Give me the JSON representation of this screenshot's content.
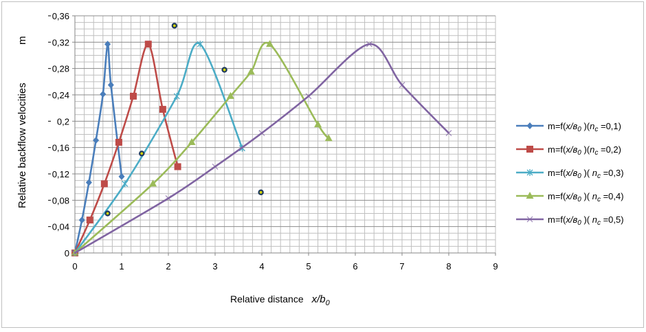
{
  "chart_data": {
    "type": "line",
    "title": "",
    "xlabel_prefix": "Relative distance",
    "xlabel_math": "x/b",
    "xlabel_sub": "0",
    "ylabel": "Relative backflow velocities",
    "ylabel_symbol": "m",
    "xlim": [
      0,
      9
    ],
    "ylim": [
      0,
      0.36
    ],
    "grid": true,
    "legend_position": "right",
    "x_ticks": [
      "0",
      "1",
      "2",
      "3",
      "4",
      "5",
      "6",
      "7",
      "8",
      "9"
    ],
    "y_ticks": [
      "0",
      "0,04",
      "0,08",
      "0,12",
      "0,16",
      "0,2",
      "0,24",
      "0,28",
      "0,32",
      "0,36"
    ],
    "series": [
      {
        "name": "m=f(x/в0 )(nc =0,1)",
        "legend": {
          "pre": "m=f(",
          "x": "x/в",
          "x_sub": "0",
          "mid": " )(",
          "n": "n",
          "n_sub": "c",
          "post": " =0,1)"
        },
        "color": "#4a7ebb",
        "marker": "diamond",
        "points": [
          [
            0,
            0
          ],
          [
            0.15,
            0.05
          ],
          [
            0.3,
            0.107
          ],
          [
            0.45,
            0.171
          ],
          [
            0.6,
            0.241
          ],
          [
            0.7,
            0.317
          ],
          [
            0.77,
            0.255
          ],
          [
            1.0,
            0.116
          ]
        ]
      },
      {
        "name": "m=f(x/в0 )(nc =0,2)",
        "legend": {
          "pre": "m=f(",
          "x": "x/в",
          "x_sub": "0",
          "mid": " )(",
          "n": "n",
          "n_sub": "c",
          "post": " =0,2)"
        },
        "color": "#be4b48",
        "marker": "square",
        "points": [
          [
            0,
            0
          ],
          [
            0.32,
            0.05
          ],
          [
            0.63,
            0.105
          ],
          [
            0.94,
            0.168
          ],
          [
            1.25,
            0.238
          ],
          [
            1.57,
            0.317
          ],
          [
            1.88,
            0.218
          ],
          [
            2.2,
            0.131
          ]
        ]
      },
      {
        "name": "m=f(x/в0 )( nc =0,3)",
        "legend": {
          "pre": "m=f(",
          "x": "x/в",
          "x_sub": "0",
          "mid": " )( ",
          "n": "n",
          "n_sub": "c",
          "post": " =0,3)"
        },
        "color": "#4bacc6",
        "marker": "star",
        "points": [
          [
            0,
            0
          ],
          [
            1.07,
            0.105
          ],
          [
            2.18,
            0.238
          ],
          [
            2.68,
            0.317
          ],
          [
            3.58,
            0.159
          ]
        ]
      },
      {
        "name": "m=f(x/в0 )( nc =0,4)",
        "legend": {
          "pre": "m=f(",
          "x": "x/в",
          "x_sub": "0",
          "mid": " )( ",
          "n": "n",
          "n_sub": "c",
          "post": " =0,4)"
        },
        "color": "#9bbb59",
        "marker": "triangle",
        "points": [
          [
            0,
            0
          ],
          [
            1.67,
            0.105
          ],
          [
            2.5,
            0.168
          ],
          [
            3.33,
            0.238
          ],
          [
            3.77,
            0.275
          ],
          [
            4.17,
            0.317
          ],
          [
            5.2,
            0.195
          ],
          [
            5.43,
            0.174
          ]
        ]
      },
      {
        "name": "m=f(x/в0 )( nc =0,5)",
        "legend": {
          "pre": "m=f(",
          "x": "x/в",
          "x_sub": "0",
          "mid": " )( ",
          "n": "n",
          "n_sub": "c",
          "post": " =0,5)"
        },
        "color": "#8064a2",
        "marker": "x",
        "points": [
          [
            0,
            0
          ],
          [
            2.0,
            0.083
          ],
          [
            3.0,
            0.131
          ],
          [
            4.0,
            0.182
          ],
          [
            5.0,
            0.238
          ],
          [
            6.3,
            0.317
          ],
          [
            7.0,
            0.255
          ],
          [
            8.0,
            0.182
          ]
        ]
      }
    ],
    "extra_points": [
      [
        0.7,
        0.06
      ],
      [
        1.43,
        0.151
      ],
      [
        2.13,
        0.345
      ],
      [
        3.2,
        0.278
      ],
      [
        3.98,
        0.092
      ]
    ]
  }
}
